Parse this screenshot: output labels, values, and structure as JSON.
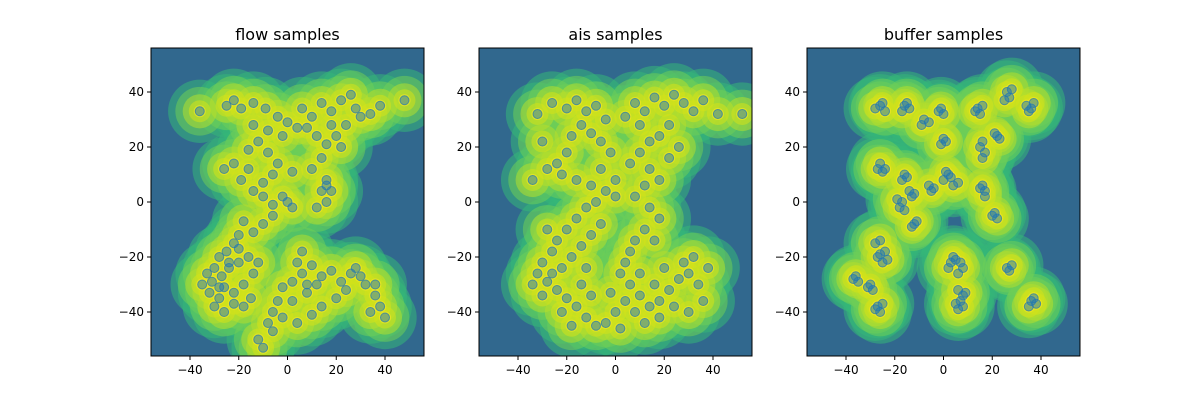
{
  "chart_data": [
    {
      "type": "scatter",
      "title": "flow samples",
      "xlabel": "",
      "ylabel": "",
      "xlim": [
        -56,
        56
      ],
      "ylim": [
        -56,
        56
      ],
      "xticks": [
        -40,
        -20,
        0,
        20,
        40
      ],
      "yticks": [
        -40,
        -20,
        0,
        20,
        40
      ],
      "xtick_labels": [
        "−40",
        "−20",
        "0",
        "20",
        "40"
      ],
      "ytick_labels": [
        "−40",
        "−20",
        "0",
        "20",
        "40"
      ],
      "point_color": "#1f77b4",
      "points": [
        [
          -36,
          33
        ],
        [
          -25,
          35
        ],
        [
          -22,
          37
        ],
        [
          -19,
          34
        ],
        [
          -14,
          36
        ],
        [
          -9,
          34
        ],
        [
          -4,
          31
        ],
        [
          0,
          29
        ],
        [
          -14,
          28
        ],
        [
          -8,
          26
        ],
        [
          -2,
          24
        ],
        [
          4,
          27
        ],
        [
          -12,
          22
        ],
        [
          -16,
          19
        ],
        [
          -8,
          18
        ],
        [
          -4,
          14
        ],
        [
          2,
          11
        ],
        [
          -6,
          10
        ],
        [
          -10,
          7
        ],
        [
          -16,
          12
        ],
        [
          -22,
          14
        ],
        [
          -26,
          12
        ],
        [
          -19,
          8
        ],
        [
          -14,
          4
        ],
        [
          -10,
          2
        ],
        [
          -6,
          -1
        ],
        [
          -2,
          2
        ],
        [
          0,
          0
        ],
        [
          2,
          -2
        ],
        [
          -6,
          -5
        ],
        [
          -10,
          -8
        ],
        [
          -14,
          -11
        ],
        [
          -18,
          -7
        ],
        [
          -20,
          -12
        ],
        [
          -22,
          -15
        ],
        [
          -25,
          -18
        ],
        [
          -28,
          -20
        ],
        [
          -30,
          -24
        ],
        [
          -27,
          -27
        ],
        [
          -31,
          -29
        ],
        [
          -26,
          -31
        ],
        [
          -22,
          -33
        ],
        [
          -18,
          -30
        ],
        [
          -14,
          -26
        ],
        [
          -12,
          -22
        ],
        [
          -24,
          -24
        ],
        [
          -20,
          -22
        ],
        [
          -28,
          -35
        ],
        [
          -35,
          -30
        ],
        [
          -33,
          -26
        ],
        [
          -26,
          -40
        ],
        [
          -30,
          -38
        ],
        [
          -22,
          -37
        ],
        [
          -15,
          -35
        ],
        [
          6,
          34
        ],
        [
          10,
          31
        ],
        [
          14,
          36
        ],
        [
          18,
          33
        ],
        [
          22,
          37
        ],
        [
          26,
          39
        ],
        [
          28,
          34
        ],
        [
          30,
          31
        ],
        [
          34,
          32
        ],
        [
          38,
          35
        ],
        [
          48,
          37
        ],
        [
          24,
          28
        ],
        [
          20,
          24
        ],
        [
          16,
          21
        ],
        [
          12,
          24
        ],
        [
          8,
          27
        ],
        [
          18,
          28
        ],
        [
          22,
          20
        ],
        [
          14,
          16
        ],
        [
          10,
          12
        ],
        [
          16,
          8
        ],
        [
          14,
          4
        ],
        [
          16,
          0
        ],
        [
          18,
          4
        ],
        [
          12,
          -2
        ],
        [
          16,
          6
        ],
        [
          4,
          -22
        ],
        [
          6,
          -26
        ],
        [
          2,
          -29
        ],
        [
          -2,
          -31
        ],
        [
          -4,
          -36
        ],
        [
          -6,
          -40
        ],
        [
          -8,
          -44
        ],
        [
          -12,
          -50
        ],
        [
          -10,
          -53
        ],
        [
          10,
          -23
        ],
        [
          14,
          -27
        ],
        [
          18,
          -25
        ],
        [
          22,
          -29
        ],
        [
          24,
          -32
        ],
        [
          28,
          -24
        ],
        [
          32,
          -30
        ],
        [
          36,
          -34
        ],
        [
          38,
          -38
        ],
        [
          34,
          -40
        ],
        [
          40,
          -42
        ],
        [
          20,
          -35
        ],
        [
          14,
          -38
        ],
        [
          8,
          -33
        ],
        [
          10,
          -41
        ],
        [
          4,
          -44
        ],
        [
          -6,
          -47
        ],
        [
          12,
          -30
        ],
        [
          26,
          -26
        ],
        [
          36,
          -30
        ],
        [
          30,
          -27
        ],
        [
          6,
          -18
        ],
        [
          8,
          -30
        ],
        [
          2,
          -36
        ],
        [
          -2,
          -42
        ],
        [
          -16,
          -20
        ],
        [
          -20,
          -17
        ],
        [
          -24,
          -22
        ],
        [
          -28,
          -31
        ],
        [
          -32,
          -33
        ],
        [
          -18,
          -38
        ]
      ]
    },
    {
      "type": "scatter",
      "title": "ais samples",
      "xlabel": "",
      "ylabel": "",
      "xlim": [
        -56,
        56
      ],
      "ylim": [
        -56,
        56
      ],
      "xticks": [
        -40,
        -20,
        0,
        20,
        40
      ],
      "yticks": [
        -40,
        -20,
        0,
        20,
        40
      ],
      "xtick_labels": [
        "−40",
        "−20",
        "0",
        "20",
        "40"
      ],
      "ytick_labels": [
        "−40",
        "−20",
        "0",
        "20",
        "40"
      ],
      "point_color": "#1f77b4",
      "points": [
        [
          -32,
          32
        ],
        [
          -26,
          36
        ],
        [
          -20,
          34
        ],
        [
          -16,
          37
        ],
        [
          -12,
          33
        ],
        [
          -8,
          35
        ],
        [
          -4,
          30
        ],
        [
          -14,
          28
        ],
        [
          -18,
          24
        ],
        [
          -10,
          25
        ],
        [
          -6,
          22
        ],
        [
          -2,
          18
        ],
        [
          -20,
          18
        ],
        [
          -24,
          14
        ],
        [
          -28,
          12
        ],
        [
          -22,
          10
        ],
        [
          -16,
          8
        ],
        [
          -10,
          6
        ],
        [
          -4,
          4
        ],
        [
          0,
          2
        ],
        [
          -8,
          0
        ],
        [
          -12,
          -2
        ],
        [
          -16,
          -6
        ],
        [
          -20,
          -10
        ],
        [
          -24,
          -14
        ],
        [
          -26,
          -18
        ],
        [
          -30,
          -22
        ],
        [
          -32,
          -26
        ],
        [
          -28,
          -29
        ],
        [
          -24,
          -32
        ],
        [
          -20,
          -35
        ],
        [
          -16,
          -38
        ],
        [
          -12,
          -42
        ],
        [
          -8,
          -45
        ],
        [
          -18,
          -45
        ],
        [
          -30,
          -34
        ],
        [
          -34,
          -30
        ],
        [
          -22,
          -24
        ],
        [
          -18,
          -20
        ],
        [
          -14,
          -16
        ],
        [
          -10,
          -12
        ],
        [
          -6,
          -8
        ],
        [
          4,
          31
        ],
        [
          8,
          36
        ],
        [
          12,
          33
        ],
        [
          16,
          38
        ],
        [
          20,
          35
        ],
        [
          24,
          39
        ],
        [
          28,
          36
        ],
        [
          32,
          33
        ],
        [
          36,
          37
        ],
        [
          42,
          32
        ],
        [
          52,
          32
        ],
        [
          22,
          28
        ],
        [
          18,
          24
        ],
        [
          14,
          22
        ],
        [
          10,
          18
        ],
        [
          6,
          14
        ],
        [
          14,
          12
        ],
        [
          18,
          8
        ],
        [
          12,
          6
        ],
        [
          8,
          2
        ],
        [
          14,
          -2
        ],
        [
          18,
          -6
        ],
        [
          12,
          -10
        ],
        [
          16,
          -14
        ],
        [
          6,
          -18
        ],
        [
          4,
          -22
        ],
        [
          2,
          -26
        ],
        [
          6,
          -30
        ],
        [
          10,
          -34
        ],
        [
          14,
          -38
        ],
        [
          18,
          -36
        ],
        [
          22,
          -32
        ],
        [
          26,
          -28
        ],
        [
          30,
          -26
        ],
        [
          34,
          -30
        ],
        [
          36,
          -36
        ],
        [
          30,
          -40
        ],
        [
          24,
          -38
        ],
        [
          18,
          -42
        ],
        [
          12,
          -44
        ],
        [
          8,
          -40
        ],
        [
          4,
          -36
        ],
        [
          0,
          -40
        ],
        [
          -4,
          -44
        ],
        [
          2,
          -46
        ],
        [
          -2,
          -33
        ],
        [
          28,
          -22
        ],
        [
          32,
          -20
        ],
        [
          20,
          -24
        ],
        [
          10,
          -26
        ],
        [
          -26,
          -26
        ],
        [
          -14,
          -30
        ],
        [
          -10,
          -34
        ],
        [
          26,
          20
        ],
        [
          22,
          16
        ],
        [
          10,
          28
        ],
        [
          -30,
          22
        ],
        [
          -34,
          8
        ],
        [
          -6,
          12
        ],
        [
          0,
          8
        ],
        [
          -28,
          -10
        ],
        [
          38,
          -24
        ],
        [
          16,
          -30
        ],
        [
          -22,
          -40
        ],
        [
          -12,
          -24
        ],
        [
          8,
          -14
        ]
      ]
    },
    {
      "type": "scatter",
      "title": "buffer samples",
      "xlabel": "",
      "ylabel": "",
      "xlim": [
        -56,
        56
      ],
      "ylim": [
        -56,
        56
      ],
      "xticks": [
        -40,
        -20,
        0,
        20,
        40
      ],
      "yticks": [
        -40,
        -20,
        0,
        20,
        40
      ],
      "xtick_labels": [
        "−40",
        "−20",
        "0",
        "20",
        "40"
      ],
      "ytick_labels": [
        "−40",
        "−20",
        "0",
        "20",
        "40"
      ],
      "point_color": "#1f77b4",
      "points": [
        [
          -26,
          35
        ],
        [
          -24,
          33
        ],
        [
          -28,
          34
        ],
        [
          -25,
          36
        ],
        [
          -16,
          35
        ],
        [
          -14,
          34
        ],
        [
          -17,
          33
        ],
        [
          -15,
          36
        ],
        [
          -8,
          30
        ],
        [
          -6,
          29
        ],
        [
          -9,
          28
        ],
        [
          -2,
          33
        ],
        [
          0,
          32
        ],
        [
          -1,
          34
        ],
        [
          14,
          34
        ],
        [
          16,
          35
        ],
        [
          15,
          32
        ],
        [
          13,
          33
        ],
        [
          26,
          40
        ],
        [
          27,
          38
        ],
        [
          25,
          37
        ],
        [
          28,
          41
        ],
        [
          34,
          35
        ],
        [
          36,
          34
        ],
        [
          35,
          33
        ],
        [
          37,
          36
        ],
        [
          -26,
          14
        ],
        [
          -24,
          12
        ],
        [
          -27,
          12
        ],
        [
          -25,
          11
        ],
        [
          -16,
          10
        ],
        [
          -15,
          9
        ],
        [
          -17,
          8
        ],
        [
          -6,
          6
        ],
        [
          -4,
          5
        ],
        [
          -5,
          4
        ],
        [
          -14,
          4
        ],
        [
          -12,
          3
        ],
        [
          -13,
          2
        ],
        [
          -18,
          -2
        ],
        [
          -17,
          0
        ],
        [
          -16,
          -3
        ],
        [
          -19,
          1
        ],
        [
          -12,
          -8
        ],
        [
          -11,
          -7
        ],
        [
          -13,
          -9
        ],
        [
          -26,
          -19
        ],
        [
          -24,
          -18
        ],
        [
          -25,
          -22
        ],
        [
          -27,
          -20
        ],
        [
          -23,
          -21
        ],
        [
          -28,
          -15
        ],
        [
          -26,
          -14
        ],
        [
          -36,
          -27
        ],
        [
          -35,
          -29
        ],
        [
          -37,
          -28
        ],
        [
          -30,
          -30
        ],
        [
          -29,
          -32
        ],
        [
          -31,
          -31
        ],
        [
          -27,
          -38
        ],
        [
          -26,
          -40
        ],
        [
          -28,
          -39
        ],
        [
          -25,
          -37
        ],
        [
          2,
          10
        ],
        [
          0,
          8
        ],
        [
          3,
          9
        ],
        [
          1,
          11
        ],
        [
          6,
          7
        ],
        [
          4,
          6
        ],
        [
          0,
          23
        ],
        [
          -1,
          21
        ],
        [
          1,
          22
        ],
        [
          16,
          6
        ],
        [
          17,
          4
        ],
        [
          15,
          5
        ],
        [
          17,
          2
        ],
        [
          15,
          20
        ],
        [
          17,
          18
        ],
        [
          16,
          22
        ],
        [
          16,
          16
        ],
        [
          22,
          24
        ],
        [
          23,
          23
        ],
        [
          21,
          25
        ],
        [
          20,
          -5
        ],
        [
          22,
          -6
        ],
        [
          21,
          -4
        ],
        [
          4,
          -20
        ],
        [
          3,
          -22
        ],
        [
          5,
          -21
        ],
        [
          2,
          -24
        ],
        [
          8,
          -24
        ],
        [
          6,
          -26
        ],
        [
          7,
          -22
        ],
        [
          6,
          -32
        ],
        [
          8,
          -34
        ],
        [
          7,
          -36
        ],
        [
          9,
          -33
        ],
        [
          5,
          -37
        ],
        [
          6,
          -39
        ],
        [
          8,
          -38
        ],
        [
          26,
          -24
        ],
        [
          28,
          -23
        ],
        [
          27,
          -25
        ],
        [
          36,
          -36
        ],
        [
          38,
          -37
        ],
        [
          37,
          -35
        ],
        [
          35,
          -38
        ]
      ]
    }
  ]
}
